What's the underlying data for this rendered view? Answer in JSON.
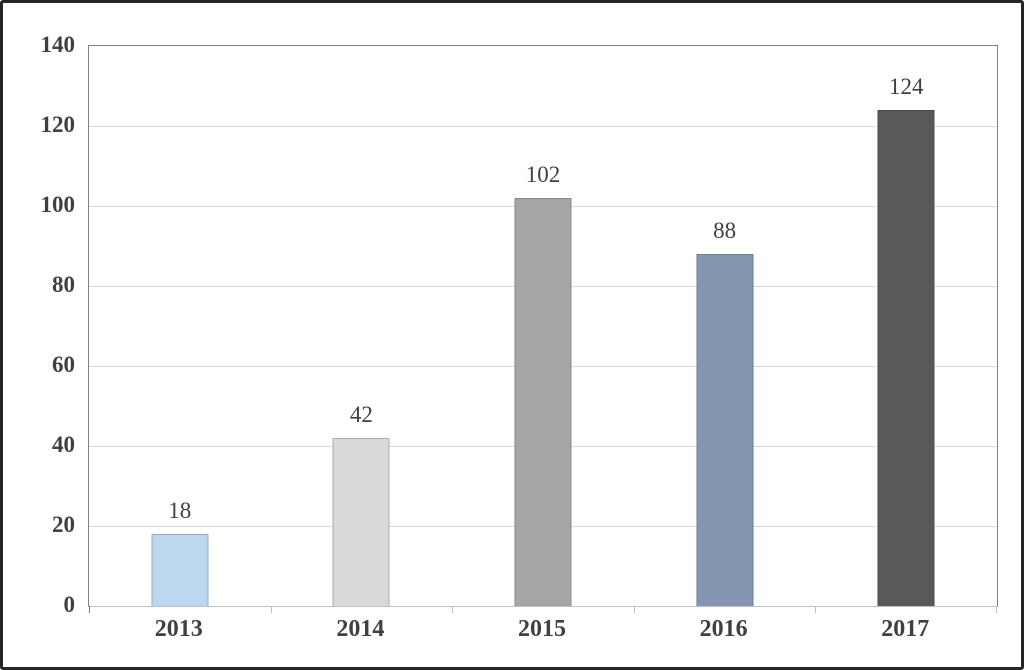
{
  "chart_data": {
    "type": "bar",
    "categories": [
      "2013",
      "2014",
      "2015",
      "2016",
      "2017"
    ],
    "values": [
      18,
      42,
      102,
      88,
      124
    ],
    "data_labels": [
      "18",
      "42",
      "102",
      "88",
      "124"
    ],
    "title": "",
    "xlabel": "",
    "ylabel": "",
    "ylim": [
      0,
      140
    ],
    "yticks": [
      0,
      20,
      40,
      60,
      80,
      100,
      120,
      140
    ],
    "grid": true,
    "legend": false,
    "bar_colors": [
      "#bdd7ee",
      "#d9d9d9",
      "#a6a6a6",
      "#8496b0",
      "#595959"
    ],
    "bar_border_colors": [
      "#94aec6",
      "#ababab",
      "#898989",
      "#6b7e97",
      "#4a4a4a"
    ],
    "colors": {
      "gridline": "#d9d9d9",
      "plot_border": "#808080",
      "axis_line": "#bfbfbf",
      "tick_mark": "#bfbfbf",
      "first_tick_mark": "#808080",
      "axis_text": "#404040",
      "data_label_text": "#404040",
      "outer_frame": "#262626",
      "background": "#ffffff"
    }
  }
}
